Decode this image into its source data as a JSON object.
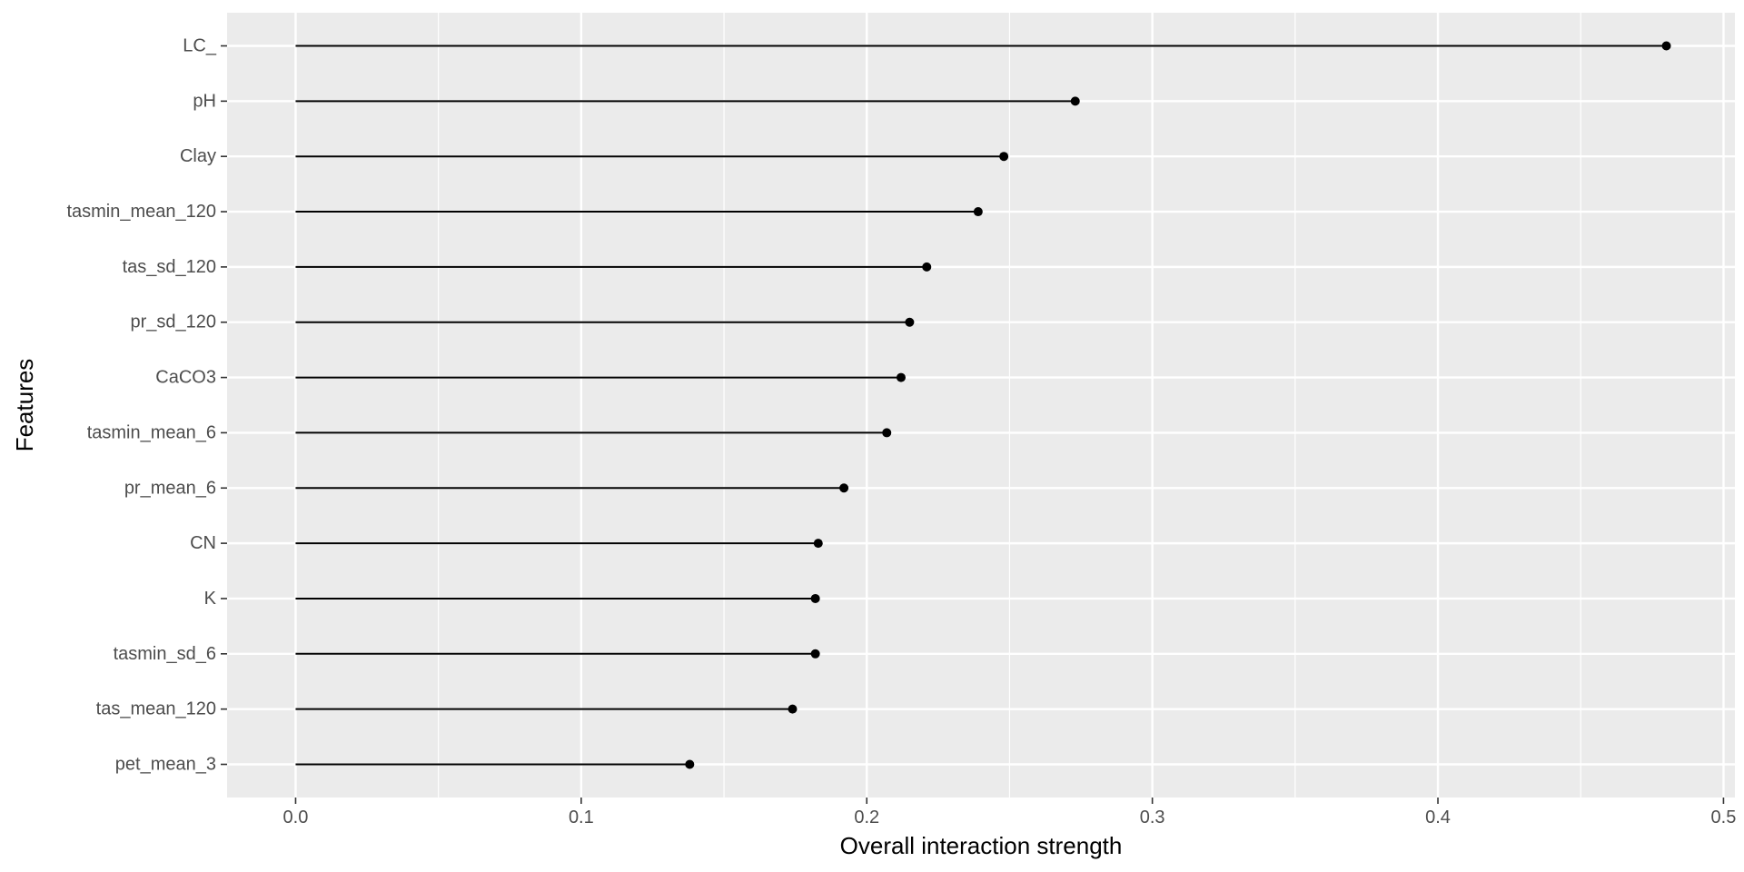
{
  "chart_data": {
    "type": "lollipop",
    "title": "",
    "xlabel": "Overall interaction strength",
    "ylabel": "Features",
    "xlim": [
      -0.024,
      0.504
    ],
    "x_ticks": [
      0.0,
      0.1,
      0.2,
      0.3,
      0.4,
      0.5
    ],
    "x_tick_labels": [
      "0.0",
      "0.1",
      "0.2",
      "0.3",
      "0.4",
      "0.5"
    ],
    "grid": true,
    "colors": {
      "panel_background": "#ebebeb",
      "gridline": "#ffffff",
      "mark": "#000000"
    },
    "categories": [
      "LC_",
      "pH",
      "Clay",
      "tasmin_mean_120",
      "tas_sd_120",
      "pr_sd_120",
      "CaCO3",
      "tasmin_mean_6",
      "pr_mean_6",
      "CN",
      "K",
      "tasmin_sd_6",
      "tas_mean_120",
      "pet_mean_3"
    ],
    "values": [
      0.48,
      0.273,
      0.248,
      0.239,
      0.221,
      0.215,
      0.212,
      0.207,
      0.192,
      0.183,
      0.182,
      0.182,
      0.174,
      0.138
    ]
  }
}
